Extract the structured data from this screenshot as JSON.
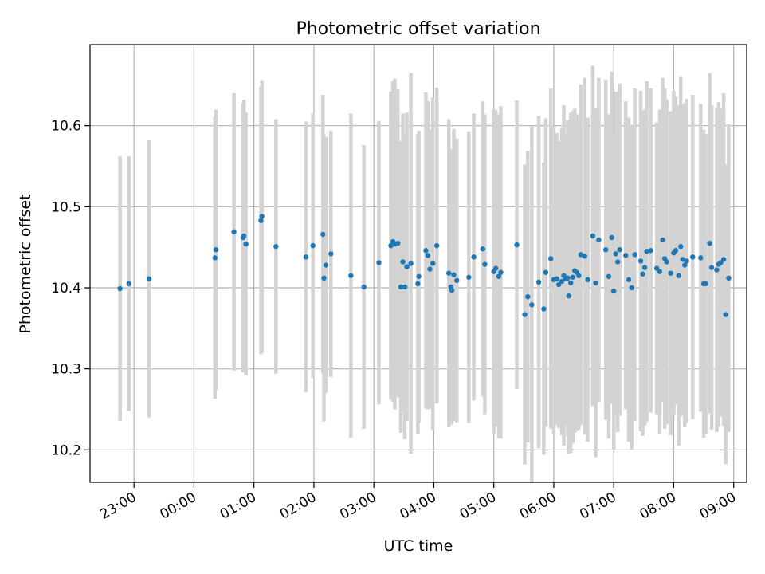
{
  "chart_data": {
    "type": "scatter",
    "title": "Photometric offset variation",
    "xlabel": "UTC time",
    "ylabel": "Photometric offset",
    "x_ticks": [
      "23:00",
      "00:00",
      "01:00",
      "02:00",
      "03:00",
      "04:00",
      "05:00",
      "06:00",
      "07:00",
      "08:00",
      "09:00"
    ],
    "x_tick_hours": [
      23,
      24,
      25,
      26,
      27,
      28,
      29,
      30,
      31,
      32,
      33
    ],
    "y_ticks": [
      10.2,
      10.3,
      10.4,
      10.5,
      10.6
    ],
    "xlim": [
      "22:16",
      "09:13"
    ],
    "ylim": [
      10.16,
      10.7
    ],
    "grid": true,
    "x_tick_rotation_deg": 30,
    "colors": {
      "points": "#1f77b4",
      "errorbars": "#d3d3d3",
      "grid": "#b0b0b0"
    },
    "series": [
      {
        "points": [
          [
            "22:46",
            10.399,
            0.163
          ],
          [
            "22:55",
            10.405,
            0.157
          ],
          [
            "23:15",
            10.411,
            0.171
          ],
          [
            "00:21",
            10.437,
            0.174
          ],
          [
            "00:22",
            10.447,
            0.173
          ],
          [
            "00:40",
            10.469,
            0.171
          ],
          [
            "00:49",
            10.462,
            0.166
          ],
          [
            "00:50",
            10.464,
            0.168
          ],
          [
            "00:52",
            10.454,
            0.162
          ],
          [
            "01:07",
            10.483,
            0.165
          ],
          [
            "01:08",
            10.488,
            0.168
          ],
          [
            "01:22",
            10.451,
            0.157
          ],
          [
            "01:52",
            10.438,
            0.167
          ],
          [
            "01:59",
            10.452,
            0.163
          ],
          [
            "02:09",
            10.466,
            0.172
          ],
          [
            "02:10",
            10.412,
            0.177
          ],
          [
            "02:12",
            10.428,
            0.158
          ],
          [
            "02:17",
            10.442,
            0.152
          ],
          [
            "02:37",
            10.415,
            0.2
          ],
          [
            "02:50",
            10.401,
            0.175
          ],
          [
            "03:05",
            10.431,
            0.175
          ],
          [
            "03:17",
            10.452,
            0.19
          ],
          [
            "03:19",
            10.457,
            0.198
          ],
          [
            "03:21",
            10.454,
            0.204
          ],
          [
            "03:24",
            10.455,
            0.19
          ],
          [
            "03:27",
            10.401,
            0.18
          ],
          [
            "03:29",
            10.432,
            0.183
          ],
          [
            "03:31",
            10.401,
            0.188
          ],
          [
            "03:33",
            10.426,
            0.19
          ],
          [
            "03:37",
            10.43,
            0.235
          ],
          [
            "03:44",
            10.405,
            0.185
          ],
          [
            "03:45",
            10.414,
            0.18
          ],
          [
            "03:52",
            10.446,
            0.195
          ],
          [
            "03:54",
            10.44,
            0.19
          ],
          [
            "03:56",
            10.423,
            0.172
          ],
          [
            "03:59",
            10.43,
            0.205
          ],
          [
            "04:03",
            10.452,
            0.195
          ],
          [
            "04:15",
            10.418,
            0.19
          ],
          [
            "04:17",
            10.401,
            0.17
          ],
          [
            "04:18",
            10.397,
            0.165
          ],
          [
            "04:20",
            10.416,
            0.18
          ],
          [
            "04:23",
            10.409,
            0.175
          ],
          [
            "04:35",
            10.413,
            0.18
          ],
          [
            "04:40",
            10.438,
            0.177
          ],
          [
            "04:49",
            10.448,
            0.182
          ],
          [
            "04:51",
            10.429,
            0.185
          ],
          [
            "05:00",
            10.42,
            0.2
          ],
          [
            "05:02",
            10.424,
            0.195
          ],
          [
            "05:05",
            10.414,
            0.2
          ],
          [
            "05:07",
            10.419,
            0.205
          ],
          [
            "05:23",
            10.453,
            0.178
          ],
          [
            "05:31",
            10.367,
            0.185
          ],
          [
            "05:34",
            10.389,
            0.18
          ],
          [
            "05:38",
            10.379,
            0.22
          ],
          [
            "05:45",
            10.407,
            0.205
          ],
          [
            "05:50",
            10.374,
            0.18
          ],
          [
            "05:52",
            10.419,
            0.19
          ],
          [
            "05:57",
            10.436,
            0.21
          ],
          [
            "06:00",
            10.41,
            0.19
          ],
          [
            "06:03",
            10.411,
            0.18
          ],
          [
            "06:05",
            10.404,
            0.177
          ],
          [
            "06:08",
            10.408,
            0.19
          ],
          [
            "06:10",
            10.415,
            0.21
          ],
          [
            "06:12",
            10.411,
            0.18
          ],
          [
            "06:14",
            10.412,
            0.195
          ],
          [
            "06:15",
            10.39,
            0.195
          ],
          [
            "06:17",
            10.406,
            0.21
          ],
          [
            "06:19",
            10.413,
            0.205
          ],
          [
            "06:21",
            10.421,
            0.2
          ],
          [
            "06:23",
            10.419,
            0.195
          ],
          [
            "06:25",
            10.415,
            0.19
          ],
          [
            "06:27",
            10.441,
            0.21
          ],
          [
            "06:31",
            10.439,
            0.22
          ],
          [
            "06:34",
            10.41,
            0.2
          ],
          [
            "06:39",
            10.464,
            0.21
          ],
          [
            "06:42",
            10.406,
            0.215
          ],
          [
            "06:45",
            10.459,
            0.2
          ],
          [
            "06:52",
            10.447,
            0.21
          ],
          [
            "06:55",
            10.414,
            0.2
          ],
          [
            "06:58",
            10.462,
            0.205
          ],
          [
            "07:00",
            10.396,
            0.195
          ],
          [
            "07:02",
            10.442,
            0.2
          ],
          [
            "07:04",
            10.432,
            0.21
          ],
          [
            "07:06",
            10.447,
            0.205
          ],
          [
            "07:12",
            10.44,
            0.19
          ],
          [
            "07:15",
            10.41,
            0.2
          ],
          [
            "07:18",
            10.4,
            0.2
          ],
          [
            "07:21",
            10.441,
            0.205
          ],
          [
            "07:27",
            10.433,
            0.21
          ],
          [
            "07:29",
            10.417,
            0.2
          ],
          [
            "07:31",
            10.425,
            0.195
          ],
          [
            "07:33",
            10.445,
            0.21
          ],
          [
            "07:37",
            10.446,
            0.2
          ],
          [
            "07:43",
            10.424,
            0.18
          ],
          [
            "07:46",
            10.42,
            0.2
          ],
          [
            "07:49",
            10.459,
            0.2
          ],
          [
            "07:51",
            10.436,
            0.21
          ],
          [
            "07:53",
            10.432,
            0.2
          ],
          [
            "07:57",
            10.418,
            0.2
          ],
          [
            "08:00",
            10.443,
            0.2
          ],
          [
            "08:02",
            10.446,
            0.19
          ],
          [
            "08:05",
            10.415,
            0.21
          ],
          [
            "08:07",
            10.451,
            0.21
          ],
          [
            "08:09",
            10.435,
            0.19
          ],
          [
            "08:11",
            10.428,
            0.2
          ],
          [
            "08:13",
            10.433,
            0.2
          ],
          [
            "08:19",
            10.438,
            0.2
          ],
          [
            "08:27",
            10.437,
            0.19
          ],
          [
            "08:30",
            10.405,
            0.19
          ],
          [
            "08:32",
            10.405,
            0.185
          ],
          [
            "08:36",
            10.455,
            0.21
          ],
          [
            "08:38",
            10.425,
            0.2
          ],
          [
            "08:43",
            10.422,
            0.2
          ],
          [
            "08:45",
            10.429,
            0.2
          ],
          [
            "08:47",
            10.431,
            0.19
          ],
          [
            "08:50",
            10.435,
            0.205
          ],
          [
            "08:52",
            10.367,
            0.185
          ],
          [
            "08:55",
            10.412,
            0.19
          ]
        ]
      }
    ]
  }
}
